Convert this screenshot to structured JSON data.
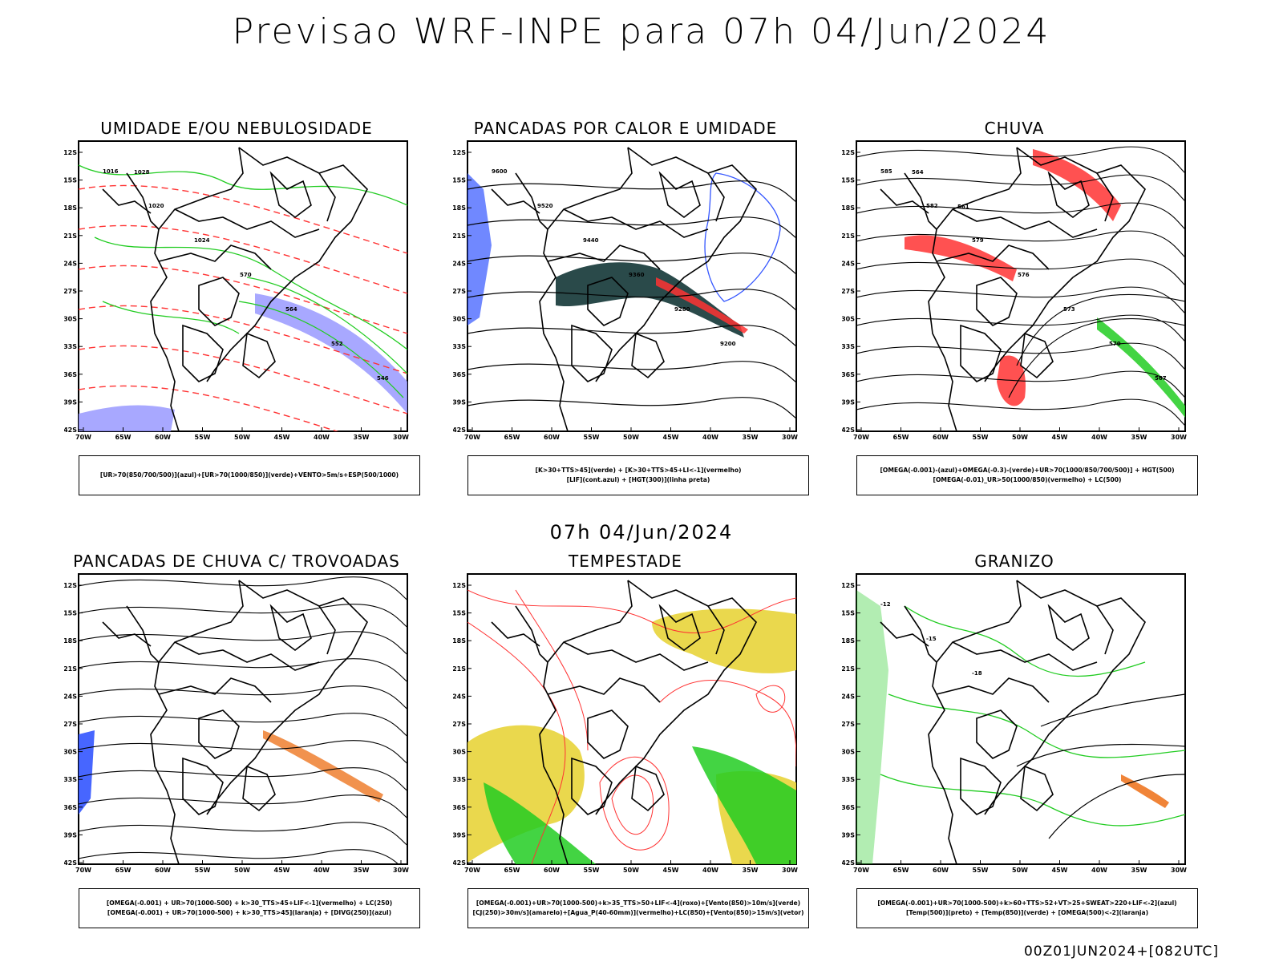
{
  "header": {
    "title": "Previsao WRF-INPE  para 07h 04/Jun/2024"
  },
  "middle_title": "07h 04/Jun/2024",
  "footer": "00Z01JUN2024+[082UTC]",
  "axes": {
    "lat_labels": [
      "12S",
      "15S",
      "18S",
      "21S",
      "24S",
      "27S",
      "30S",
      "33S",
      "36S",
      "39S",
      "42S"
    ],
    "lon_labels": [
      "70W",
      "65W",
      "60W",
      "55W",
      "50W",
      "45W",
      "40W",
      "35W",
      "30W"
    ]
  },
  "colors": {
    "blue": "#3355ff",
    "green": "#22cc22",
    "red": "#ff3333",
    "dark_teal": "#1f4040",
    "yellow": "#e8d43a",
    "orange": "#ee7722",
    "light_blue": "#9999ff"
  },
  "panels": [
    {
      "id": "umidade",
      "title": "UMIDADE E/OU NEBULOSIDADE",
      "legend": [
        "[UR>70(850/700/500)](azul)+[UR>70(1000/850)](verde)+VENTO>5m/s+ESP(500/1000)"
      ],
      "contour_labels": [
        "1016",
        "1020",
        "1024",
        "570",
        "564",
        "552",
        "546",
        "1028"
      ]
    },
    {
      "id": "pancadas_calor",
      "title": "PANCADAS POR CALOR E UMIDADE",
      "legend": [
        "[K>30+TTS>45](verde)  +  [K>30+TTS>45+LI<-1](vermelho)",
        "[LIF](cont.azul)  +  [HGT(300)](linha preta)"
      ],
      "contour_labels": [
        "9600",
        "9520",
        "9440",
        "9360",
        "9280",
        "9200"
      ]
    },
    {
      "id": "chuva",
      "title": "CHUVA",
      "legend": [
        "[OMEGA(-0.001)-(azul)+OMEGA(-0.3)-(verde)+UR>70(1000/850/700/500)]  +  HGT(500)",
        "[OMEGA(-0.01)_UR>50(1000/850)(vermelho)  +  LC(500)"
      ],
      "contour_labels": [
        "585",
        "582",
        "579",
        "576",
        "573",
        "570",
        "567",
        "564",
        "561"
      ]
    },
    {
      "id": "trovoadas",
      "title": "PANCADAS DE CHUVA C/ TROVOADAS",
      "legend": [
        "[OMEGA(-0.001)  +  UR>70(1000-500)  +  k>30_TTS>45+LIF<-1](vermelho)  +  LC(250)",
        "[OMEGA(-0.001)  +  UR>70(1000-500)  +  k>30_TTS>45](laranja)  +  [DIVG(250)](azul)"
      ],
      "contour_labels": []
    },
    {
      "id": "tempestade",
      "title": "TEMPESTADE",
      "legend": [
        "[OMEGA(-0.001)+UR>70(1000-500)+k>35_TTS>50+LIF<-4](roxo)+[Vento(850)>10m/s](verde)",
        "[CJ(250)>30m/s](amarelo)+[Agua_P(40-60mm)](vermelho)+LC(850)+[Vento(850)>15m/s](vetor)"
      ],
      "contour_labels": []
    },
    {
      "id": "granizo",
      "title": "GRANIZO",
      "legend": [
        "[OMEGA(-0.001)+UR>70(1000-500)+k>60+TTS>52+VT>25+SWEAT>220+LIF<-2](azul)",
        "[Temp(500)](preto)  +  [Temp(850)](verde)  +  [OMEGA(500)<-2](laranja)"
      ],
      "contour_labels": [
        "-12",
        "-15",
        "-18"
      ]
    }
  ]
}
